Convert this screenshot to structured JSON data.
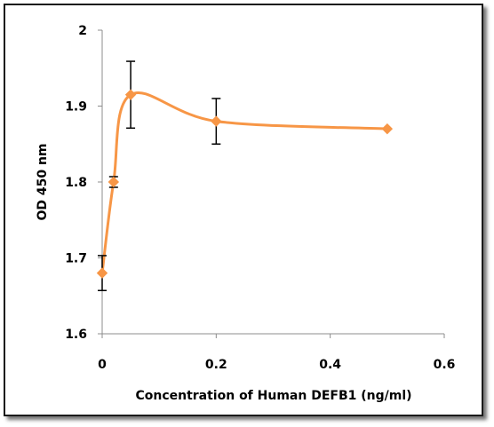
{
  "chart_data": {
    "type": "line",
    "title": "",
    "xlabel": "Concentration of Human DEFB1 (ng/ml)",
    "ylabel": "OD 450 nm",
    "xlim": [
      0,
      0.6
    ],
    "ylim": [
      1.6,
      2.0
    ],
    "x_ticks": [
      "0",
      "0.2",
      "0.4",
      "0.6"
    ],
    "x_tick_values": [
      0,
      0.2,
      0.4,
      0.6
    ],
    "y_ticks": [
      "1.6",
      "1.7",
      "1.8",
      "1.9",
      "2"
    ],
    "y_tick_values": [
      1.6,
      1.7,
      1.8,
      1.9,
      2.0
    ],
    "grid": false,
    "legend": "none",
    "smooth": true,
    "series": [
      {
        "color": "#F79646",
        "marker": "diamond",
        "x": [
          0,
          0.02,
          0.05,
          0.2,
          0.5
        ],
        "y": [
          1.68,
          1.8,
          1.915,
          1.88,
          1.87
        ],
        "error": [
          0.023,
          0.007,
          0.044,
          0.03,
          null
        ]
      }
    ]
  }
}
